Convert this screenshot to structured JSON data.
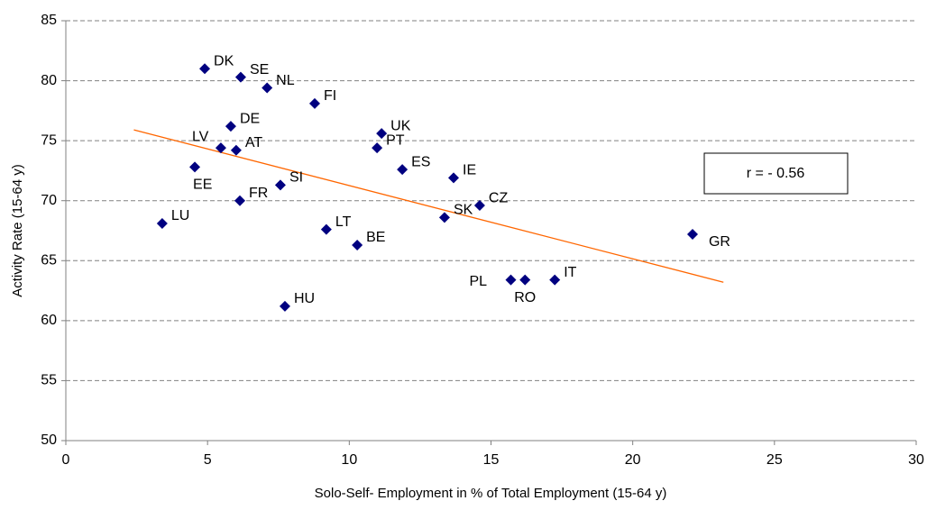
{
  "chart_data": {
    "type": "scatter",
    "x_label": "Solo-Self- Employment in % of Total Employment (15-64 y)",
    "y_label": "Activity Rate (15-64 y)",
    "annotation": "r = - 0.56",
    "point_labels": [
      "DK",
      "SE",
      "NL",
      "FI",
      "DE",
      "UK",
      "LV",
      "AT",
      "PT",
      "EE",
      "ES",
      "IE",
      "SI",
      "FR",
      "CZ",
      "SK",
      "LU",
      "LT",
      "BE",
      "GR",
      "PL",
      "RO",
      "IT",
      "HU"
    ],
    "x": [
      4.9,
      6.17,
      7.1,
      8.78,
      5.82,
      11.14,
      5.47,
      6.01,
      10.98,
      4.55,
      11.87,
      13.68,
      7.57,
      6.14,
      14.6,
      13.36,
      3.4,
      9.19,
      10.28,
      22.11,
      15.7,
      16.2,
      17.25,
      7.73
    ],
    "y": [
      81.0,
      80.3,
      79.4,
      78.1,
      76.2,
      75.6,
      74.4,
      74.2,
      74.4,
      72.8,
      72.6,
      71.9,
      71.3,
      70.0,
      69.6,
      68.6,
      68.1,
      67.6,
      66.3,
      67.2,
      63.4,
      63.4,
      63.4,
      61.2
    ],
    "color": "#000080",
    "trendline": {
      "x": [
        2.4,
        23.2
      ],
      "y": [
        75.9,
        63.2
      ],
      "color": "#ff6600"
    },
    "xlim": [
      0,
      30
    ],
    "xticks": [
      0,
      5,
      10,
      15,
      20,
      25,
      30
    ],
    "ylim": [
      50,
      85
    ],
    "yticks": [
      50,
      55,
      60,
      65,
      70,
      75,
      80,
      85
    ],
    "grid": true
  }
}
